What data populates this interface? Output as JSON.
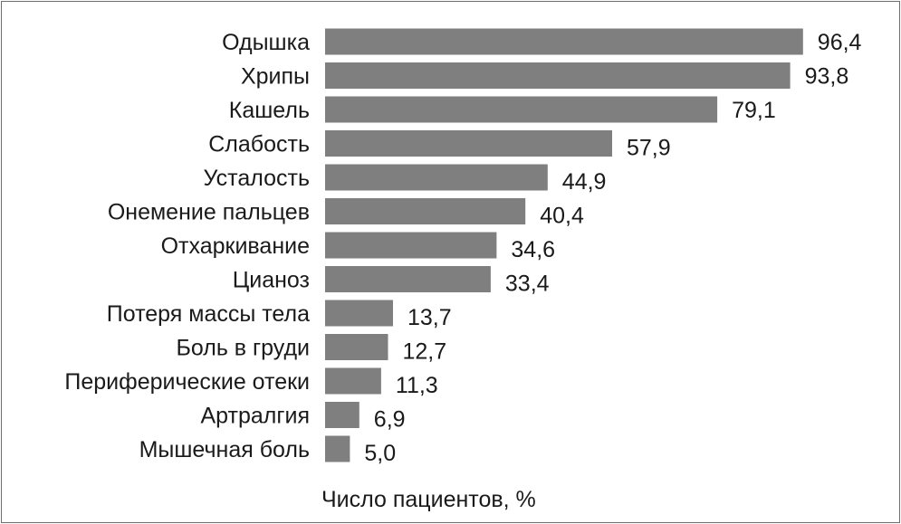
{
  "chart_data": {
    "type": "bar",
    "orientation": "horizontal",
    "categories": [
      "Одышка",
      "Хрипы",
      "Кашель",
      "Слабость",
      "Усталость",
      "Онемение пальцев",
      "Отхаркивание",
      "Цианоз",
      "Потеря массы тела",
      "Боль в груди",
      "Периферические отеки",
      "Артралгия",
      "Мышечная боль"
    ],
    "values": [
      96.4,
      93.8,
      79.1,
      57.9,
      44.9,
      40.4,
      34.6,
      33.4,
      13.7,
      12.7,
      11.3,
      6.9,
      5.0
    ],
    "value_labels": [
      "96,4",
      "93,8",
      "79,1",
      "57,9",
      "44,9",
      "40,4",
      "34,6",
      "33,4",
      "13,7",
      "12,7",
      "11,3",
      "6,9",
      "5,0"
    ],
    "title": "",
    "xlabel": "Число пациентов, %",
    "ylabel": "",
    "xlim": [
      0,
      100
    ],
    "grid": false,
    "legend": "none",
    "bar_color": "#7f7f7f"
  }
}
